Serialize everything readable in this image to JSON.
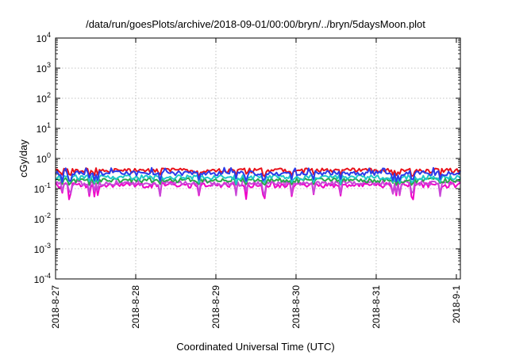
{
  "chart_data": {
    "type": "line",
    "title": "/data/run/goesPlots/archive/2018-09-01/00:00/bryn/../bryn/5daysMoon.plot",
    "xlabel": "Coordinated Universal Time (UTC)",
    "ylabel": "cGy/day",
    "x_tick_labels": [
      "2018-8-27",
      "2018-8-28",
      "2018-8-29",
      "2018-8-30",
      "2018-8-31",
      "2018-9-1"
    ],
    "x_range_days": [
      0,
      5.05
    ],
    "y_scale": "log",
    "ylim": [
      0.0001,
      10000
    ],
    "y_ticks": [
      {
        "value": 0.0001,
        "base": "10",
        "exp": "-4"
      },
      {
        "value": 0.001,
        "base": "10",
        "exp": "-3"
      },
      {
        "value": 0.01,
        "base": "10",
        "exp": "-2"
      },
      {
        "value": 0.1,
        "base": "10",
        "exp": "-1"
      },
      {
        "value": 1,
        "base": "10",
        "exp": "0"
      },
      {
        "value": 10,
        "base": "10",
        "exp": "1"
      },
      {
        "value": 100,
        "base": "10",
        "exp": "2"
      },
      {
        "value": 1000,
        "base": "10",
        "exp": "3"
      },
      {
        "value": 10000,
        "base": "10",
        "exp": "4"
      }
    ],
    "grid": true,
    "legend": "none",
    "series": [
      {
        "color": "#e8121b",
        "typical": 0.4,
        "min": 0.25,
        "max": 0.48
      },
      {
        "color": "#2b3bea",
        "typical": 0.33,
        "min": 0.16,
        "max": 0.5
      },
      {
        "color": "#1ec8c8",
        "typical": 0.24,
        "min": 0.14,
        "max": 0.29
      },
      {
        "color": "#2aa64a",
        "typical": 0.19,
        "min": 0.13,
        "max": 0.23
      },
      {
        "color": "#c848d8",
        "typical": 0.15,
        "min": 0.05,
        "max": 0.19
      },
      {
        "color": "#f000c8",
        "typical": 0.13,
        "min": 0.04,
        "max": 0.17
      }
    ]
  }
}
